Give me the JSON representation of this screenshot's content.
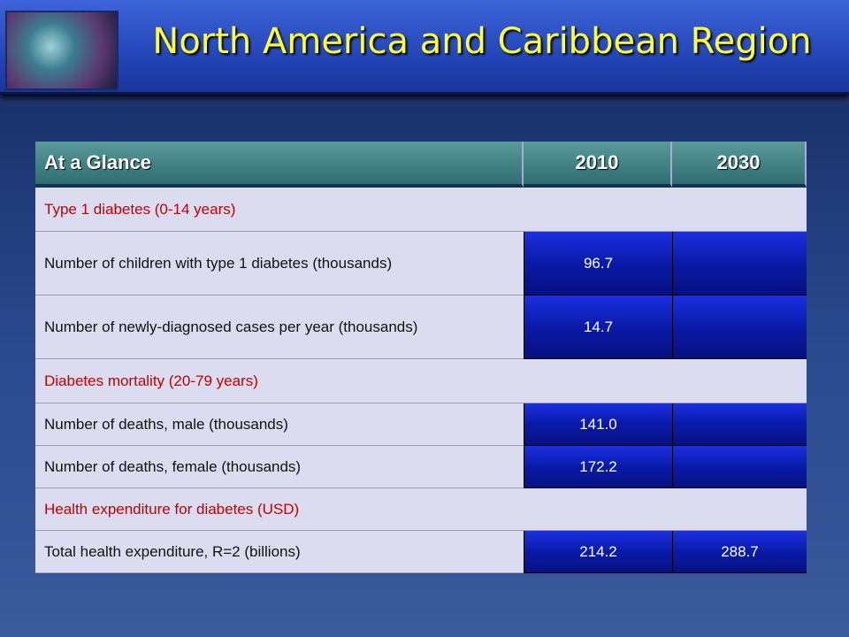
{
  "header": {
    "title": "North America and Caribbean Region"
  },
  "table": {
    "columns": [
      "At a Glance",
      "2010",
      "2030"
    ],
    "rows": [
      {
        "section": "Type 1 diabetes (0-14 years)"
      },
      {
        "cells": [
          "Number of children with type 1 diabetes (thousands)",
          "96.7"
        ]
      },
      {
        "cells": [
          "Number of newly-diagnosed cases per year (thousands)",
          "14.7"
        ]
      },
      {
        "section": "Diabetes mortality (20-79 years)"
      },
      {
        "cells": [
          "Number of deaths, male (thousands)",
          "141.0"
        ]
      },
      {
        "cells": [
          "Number of deaths, female (thousands)",
          "172.2"
        ]
      },
      {
        "section": "Health expenditure for diabetes (USD)"
      },
      {
        "cells": [
          "Total health expenditure, R=2 (billions)",
          "214.2",
          "288.7"
        ]
      }
    ]
  }
}
